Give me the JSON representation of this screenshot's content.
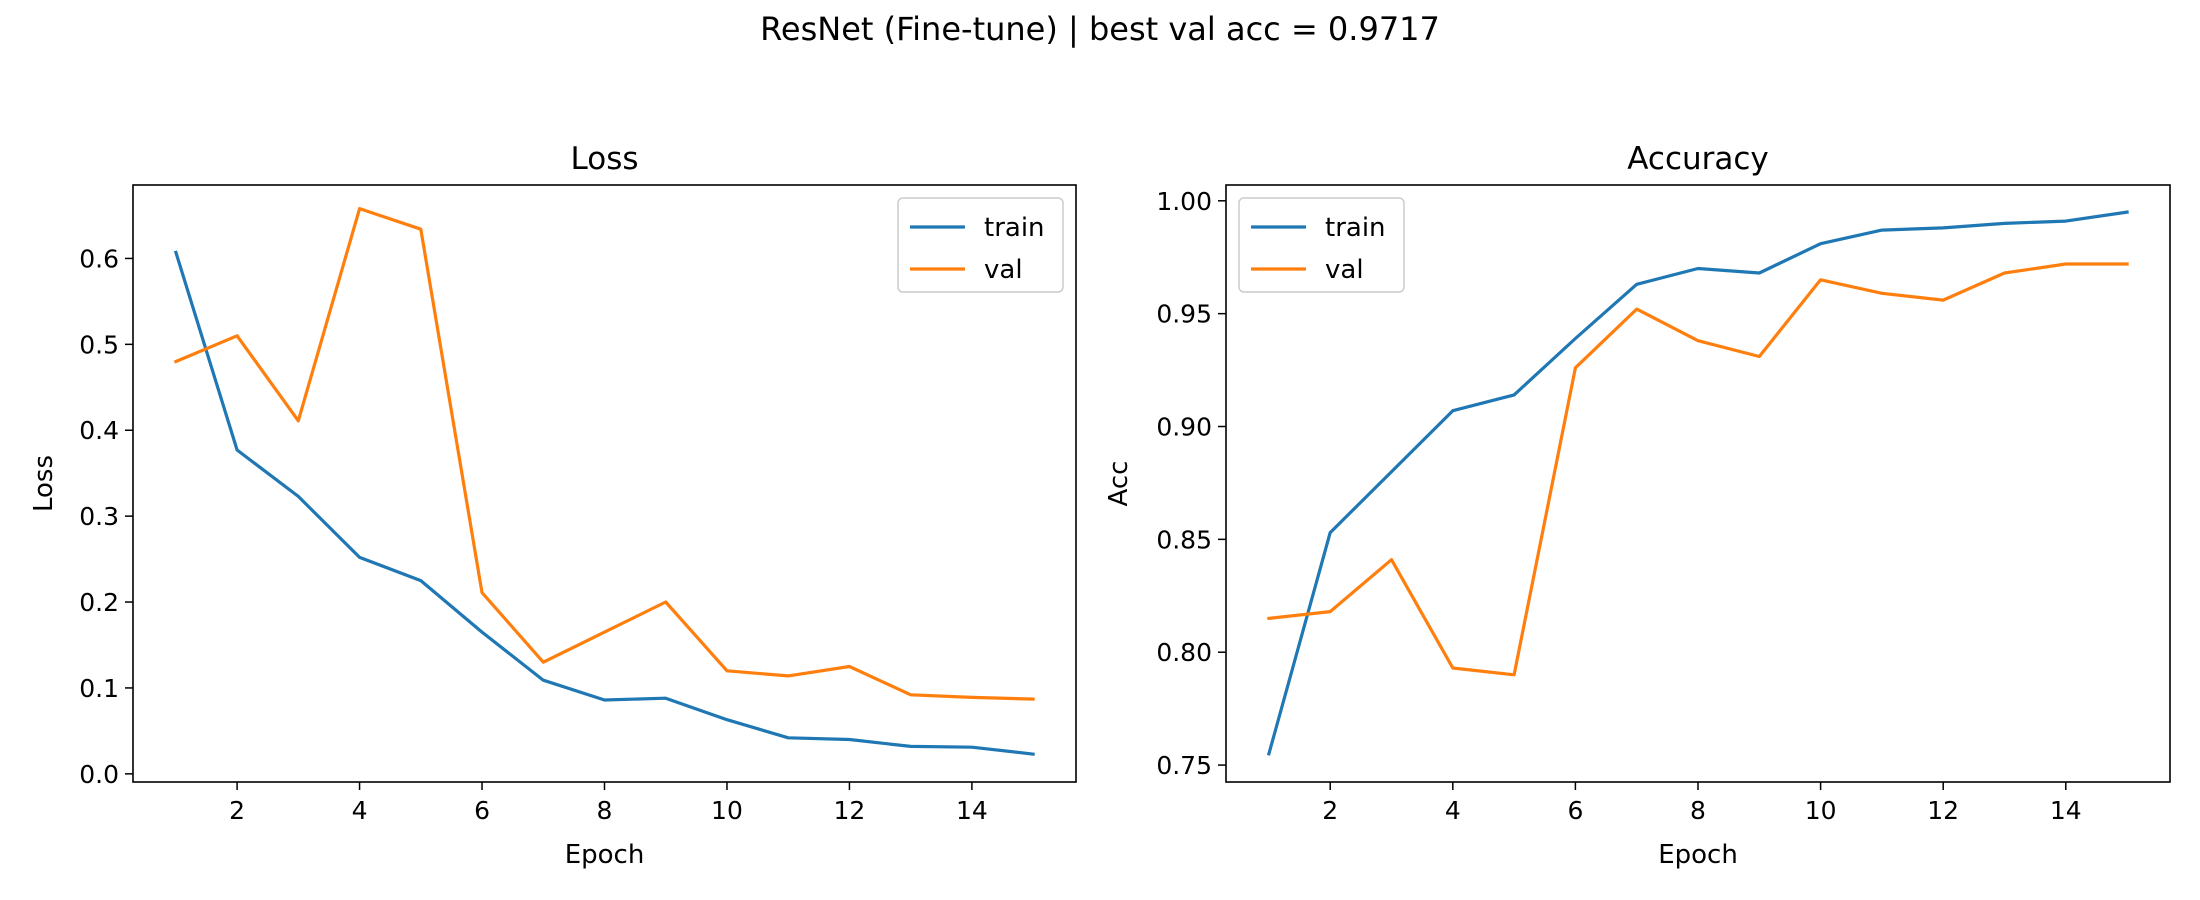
{
  "figure": {
    "suptitle": "ResNet (Fine-tune) | best val acc = 0.9717"
  },
  "colors": {
    "train": "#1f77b4",
    "val": "#ff7f0e"
  },
  "chart_data": [
    {
      "type": "line",
      "title": "Loss",
      "xlabel": "Epoch",
      "ylabel": "Loss",
      "xlim": [
        0.3,
        15.7
      ],
      "ylim": [
        -0.0095,
        0.6855
      ],
      "xticks": [
        2,
        4,
        6,
        8,
        10,
        12,
        14
      ],
      "yticks": [
        0.0,
        0.1,
        0.2,
        0.3,
        0.4,
        0.5,
        0.6
      ],
      "ytick_labels": [
        "0.0",
        "0.1",
        "0.2",
        "0.3",
        "0.4",
        "0.5",
        "0.6"
      ],
      "legend": {
        "position": "top-right"
      },
      "x": [
        1,
        2,
        3,
        4,
        5,
        6,
        7,
        8,
        9,
        10,
        11,
        12,
        13,
        14,
        15
      ],
      "series": [
        {
          "name": "train",
          "values": [
            0.607,
            0.377,
            0.323,
            0.252,
            0.225,
            0.165,
            0.109,
            0.086,
            0.088,
            0.063,
            0.042,
            0.04,
            0.032,
            0.031,
            0.023
          ]
        },
        {
          "name": "val",
          "values": [
            0.48,
            0.51,
            0.411,
            0.658,
            0.634,
            0.211,
            0.13,
            0.165,
            0.2,
            0.12,
            0.114,
            0.125,
            0.092,
            0.089,
            0.087
          ]
        }
      ]
    },
    {
      "type": "line",
      "title": "Accuracy",
      "xlabel": "Epoch",
      "ylabel": "Acc",
      "xlim": [
        0.3,
        15.7
      ],
      "ylim": [
        0.7425,
        1.007
      ],
      "xticks": [
        2,
        4,
        6,
        8,
        10,
        12,
        14
      ],
      "yticks": [
        0.75,
        0.8,
        0.85,
        0.9,
        0.95,
        1.0
      ],
      "ytick_labels": [
        "0.75",
        "0.80",
        "0.85",
        "0.90",
        "0.95",
        "1.00"
      ],
      "legend": {
        "position": "top-left"
      },
      "x": [
        1,
        2,
        3,
        4,
        5,
        6,
        7,
        8,
        9,
        10,
        11,
        12,
        13,
        14,
        15
      ],
      "series": [
        {
          "name": "train",
          "values": [
            0.755,
            0.853,
            0.88,
            0.907,
            0.914,
            0.939,
            0.963,
            0.97,
            0.968,
            0.981,
            0.987,
            0.988,
            0.99,
            0.991,
            0.995
          ]
        },
        {
          "name": "val",
          "values": [
            0.815,
            0.818,
            0.841,
            0.793,
            0.79,
            0.926,
            0.952,
            0.938,
            0.931,
            0.965,
            0.959,
            0.956,
            0.968,
            0.972,
            0.972
          ]
        }
      ]
    }
  ]
}
